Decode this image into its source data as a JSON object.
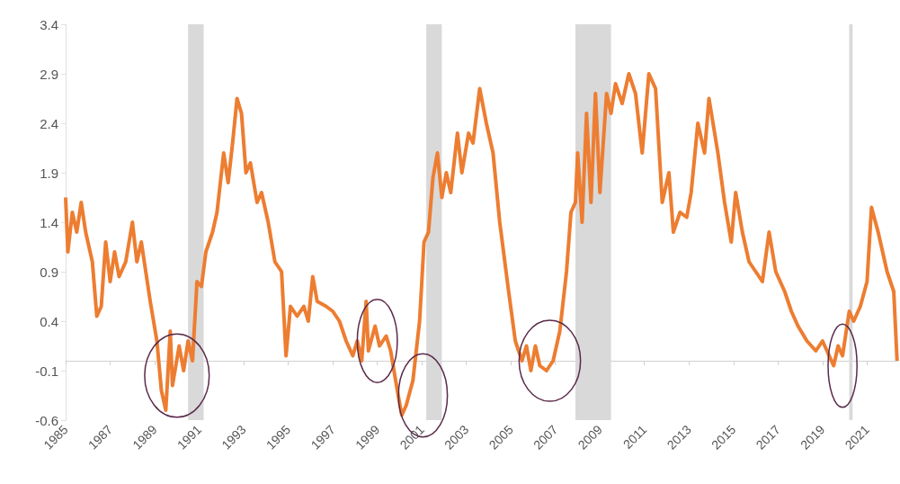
{
  "chart_data": {
    "type": "line",
    "xlim": [
      1985,
      2022.4
    ],
    "xticks": [
      1985,
      1987,
      1989,
      1991,
      1993,
      1995,
      1997,
      1999,
      2001,
      2003,
      2005,
      2007,
      2009,
      2011,
      2013,
      2015,
      2017,
      2019,
      2021
    ],
    "ylim": [
      -0.6,
      3.4
    ],
    "yticks": [
      -0.6,
      -0.1,
      0.4,
      0.9,
      1.4,
      1.9,
      2.4,
      2.9,
      3.4
    ],
    "grid": false,
    "marker": "none",
    "line_style": "solid",
    "bands": [
      {
        "axis": "x",
        "from": 1990.5,
        "to": 1991.2,
        "color": "#d9d9d9"
      },
      {
        "axis": "x",
        "from": 2001.2,
        "to": 2001.9,
        "color": "#d9d9d9"
      },
      {
        "axis": "x",
        "from": 2007.9,
        "to": 2009.5,
        "color": "#d9d9d9"
      },
      {
        "axis": "x",
        "from": 2020.2,
        "to": 2020.35,
        "color": "#d9d9d9"
      }
    ],
    "series": [
      {
        "color": "#ed7d31",
        "x": [
          1985.0,
          1985.1,
          1985.3,
          1985.5,
          1985.7,
          1985.9,
          1986.2,
          1986.4,
          1986.6,
          1986.8,
          1987.0,
          1987.2,
          1987.4,
          1987.7,
          1988.0,
          1988.2,
          1988.4,
          1988.8,
          1989.1,
          1989.3,
          1989.5,
          1989.7,
          1989.8,
          1990.1,
          1990.3,
          1990.5,
          1990.7,
          1990.9,
          1991.1,
          1991.3,
          1991.6,
          1991.8,
          1992.1,
          1992.3,
          1992.5,
          1992.7,
          1992.9,
          1993.1,
          1993.3,
          1993.6,
          1993.8,
          1994.1,
          1994.4,
          1994.7,
          1994.9,
          1995.1,
          1995.4,
          1995.7,
          1995.9,
          1996.1,
          1996.3,
          1996.7,
          1997.0,
          1997.3,
          1997.6,
          1997.9,
          1998.1,
          1998.3,
          1998.5,
          1998.6,
          1998.9,
          1999.1,
          1999.4,
          1999.6,
          1999.9,
          2000.1,
          2000.3,
          2000.6,
          2000.9,
          2001.1,
          2001.3,
          2001.5,
          2001.7,
          2001.9,
          2002.1,
          2002.3,
          2002.6,
          2002.8,
          2003.1,
          2003.3,
          2003.6,
          2003.9,
          2004.2,
          2004.5,
          2004.9,
          2005.2,
          2005.5,
          2005.7,
          2005.9,
          2006.1,
          2006.3,
          2006.6,
          2006.9,
          2007.2,
          2007.5,
          2007.7,
          2007.9,
          2008.0,
          2008.2,
          2008.4,
          2008.6,
          2008.8,
          2009.0,
          2009.3,
          2009.5,
          2009.7,
          2010.0,
          2010.3,
          2010.6,
          2010.9,
          2011.2,
          2011.5,
          2011.8,
          2012.1,
          2012.3,
          2012.6,
          2012.9,
          2013.1,
          2013.4,
          2013.7,
          2013.9,
          2014.3,
          2014.6,
          2014.9,
          2015.1,
          2015.4,
          2015.7,
          2016.0,
          2016.3,
          2016.6,
          2016.9,
          2017.3,
          2017.6,
          2017.9,
          2018.3,
          2018.7,
          2019.0,
          2019.3,
          2019.5,
          2019.7,
          2019.9,
          2020.2,
          2020.4,
          2020.7,
          2021.0,
          2021.2,
          2021.5,
          2021.7,
          2021.9,
          2022.2,
          2022.35
        ],
        "values": [
          1.65,
          1.1,
          1.5,
          1.3,
          1.6,
          1.3,
          1.0,
          0.45,
          0.55,
          1.2,
          0.8,
          1.1,
          0.85,
          1.0,
          1.4,
          1.0,
          1.2,
          0.6,
          0.2,
          -0.3,
          -0.5,
          0.3,
          -0.25,
          0.15,
          -0.1,
          0.2,
          0.0,
          0.8,
          0.75,
          1.1,
          1.3,
          1.5,
          2.1,
          1.8,
          2.2,
          2.65,
          2.5,
          1.9,
          2.0,
          1.6,
          1.7,
          1.4,
          1.0,
          0.9,
          0.05,
          0.55,
          0.45,
          0.55,
          0.4,
          0.85,
          0.6,
          0.55,
          0.5,
          0.4,
          0.2,
          0.05,
          0.2,
          0.0,
          0.6,
          0.1,
          0.35,
          0.15,
          0.25,
          0.1,
          -0.3,
          -0.55,
          -0.45,
          -0.2,
          0.4,
          1.2,
          1.3,
          1.85,
          2.1,
          1.65,
          1.9,
          1.7,
          2.3,
          1.9,
          2.3,
          2.2,
          2.75,
          2.4,
          2.1,
          1.4,
          0.7,
          0.2,
          0.0,
          0.15,
          -0.1,
          0.15,
          -0.05,
          -0.1,
          0.0,
          0.3,
          0.9,
          1.5,
          1.6,
          2.1,
          1.4,
          2.5,
          1.6,
          2.7,
          1.7,
          2.7,
          2.5,
          2.8,
          2.6,
          2.9,
          2.7,
          2.1,
          2.9,
          2.75,
          1.6,
          1.9,
          1.3,
          1.5,
          1.45,
          1.7,
          2.4,
          2.1,
          2.65,
          2.1,
          1.6,
          1.2,
          1.7,
          1.3,
          1.0,
          0.9,
          0.8,
          1.3,
          0.9,
          0.7,
          0.5,
          0.35,
          0.2,
          0.1,
          0.2,
          0.05,
          -0.05,
          0.15,
          0.05,
          0.5,
          0.4,
          0.55,
          0.8,
          1.55,
          1.3,
          1.1,
          0.9,
          0.7,
          0.0
        ]
      }
    ]
  }
}
